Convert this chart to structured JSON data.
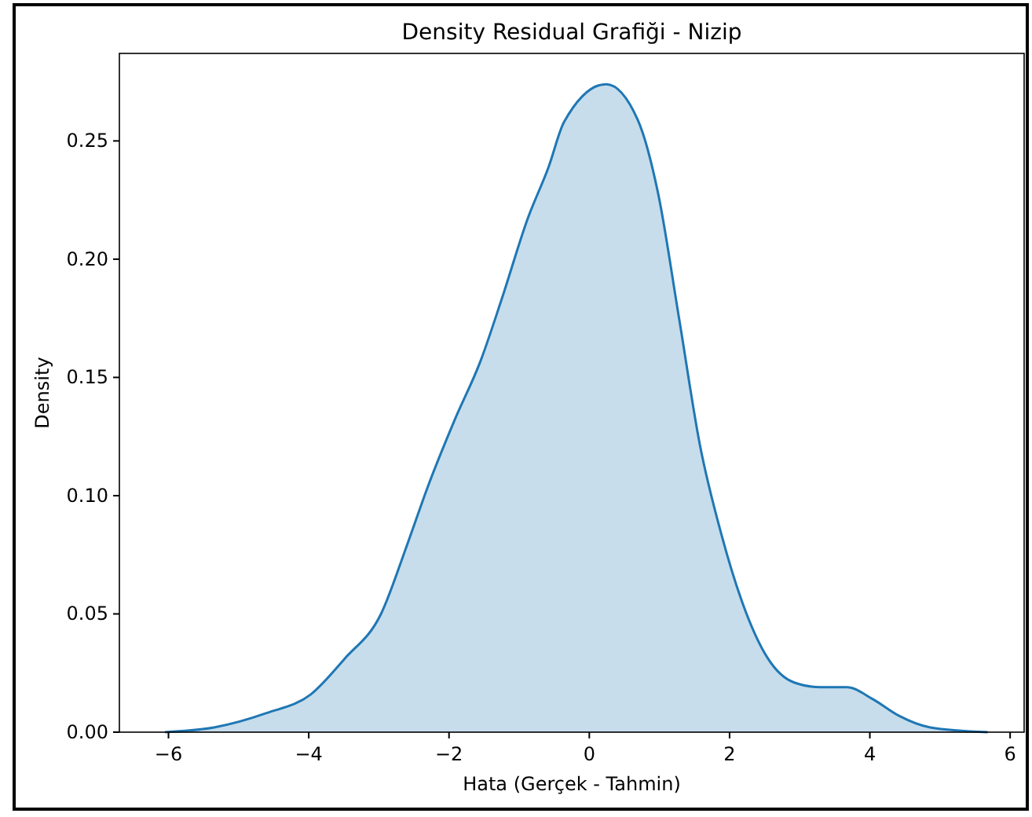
{
  "chart_data": {
    "type": "area",
    "title": "Density Residual Grafiği - Nizip",
    "xlabel": "Hata (Gerçek - Tahmin)",
    "ylabel": "Density",
    "x": [
      -6.05,
      -5.35,
      -4.61,
      -3.97,
      -3.49,
      -2.97,
      -2.6,
      -2.3,
      -1.92,
      -1.55,
      -1.25,
      -0.88,
      -0.58,
      -0.36,
      0.24,
      0.69,
      0.98,
      1.28,
      1.58,
      1.88,
      2.18,
      2.55,
      2.92,
      3.3,
      3.67,
      4.04,
      4.41,
      4.86,
      5.68
    ],
    "series": [
      {
        "color": "#1f77b4",
        "values": [
          0,
          0.002,
          0.008,
          0.016,
          0.031,
          0.05,
          0.079,
          0.104,
          0.132,
          0.157,
          0.183,
          0.217,
          0.239,
          0.258,
          0.274,
          0.259,
          0.228,
          0.175,
          0.121,
          0.084,
          0.055,
          0.031,
          0.021,
          0.019,
          0.019,
          0.014,
          0.007,
          0.002,
          0
        ]
      }
    ],
    "xlim": [
      -6.7,
      6.2
    ],
    "ylim": [
      0,
      0.287
    ],
    "xticks": [
      {
        "value": -6,
        "label": "−6"
      },
      {
        "value": -4,
        "label": "−4"
      },
      {
        "value": -2,
        "label": "−2"
      },
      0,
      2,
      4,
      6
    ],
    "yticks": [
      {
        "value": 0,
        "label": "0.00"
      },
      {
        "value": 0.05,
        "label": "0.05"
      },
      {
        "value": 0.1,
        "label": "0.10"
      },
      {
        "value": 0.15,
        "label": "0.15"
      },
      {
        "value": 0.2,
        "label": "0.20"
      },
      {
        "value": 0.25,
        "label": "0.25"
      }
    ],
    "grid": false
  }
}
